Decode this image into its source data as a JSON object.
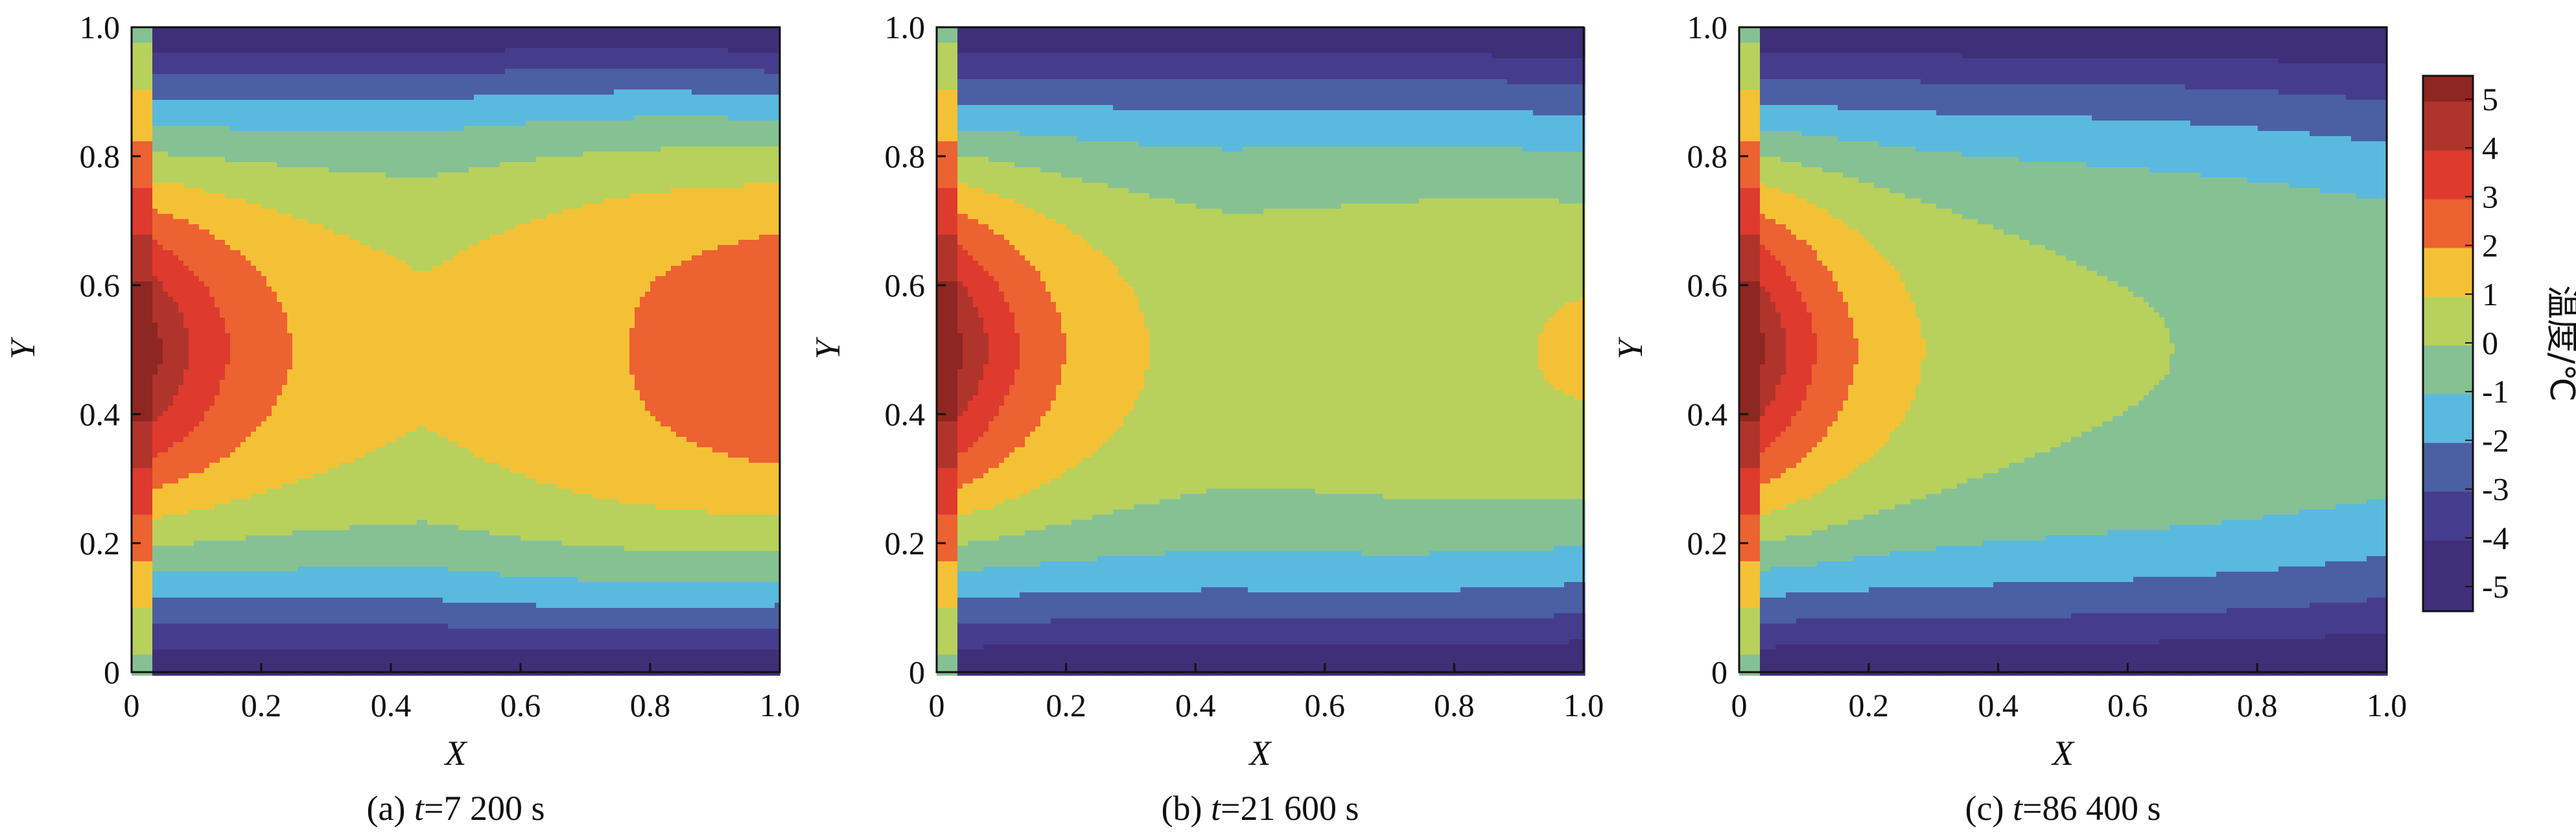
{
  "chart_data": [
    {
      "type": "heatmap",
      "panel": "a",
      "caption": {
        "prefix": "(a) ",
        "var": "t",
        "rest": "=7 200 s"
      },
      "xlabel": "X",
      "ylabel": "Y",
      "xlim": [
        0,
        1.0
      ],
      "ylim": [
        0,
        1.0
      ],
      "xticks": [
        "0",
        "0.2",
        "0.4",
        "0.6",
        "0.8",
        "1.0"
      ],
      "yticks": [
        "0",
        "0.2",
        "0.4",
        "0.6",
        "0.8",
        "1.0"
      ],
      "field_params": {
        "t_seconds": 7200,
        "left_temp": 6.0,
        "right_center_temp": 2.3,
        "mid_temp": 0.3
      }
    },
    {
      "type": "heatmap",
      "panel": "b",
      "caption": {
        "prefix": "(b) ",
        "var": "t",
        "rest": "=21 600 s"
      },
      "xlabel": "X",
      "ylabel": "Y",
      "xlim": [
        0,
        1.0
      ],
      "ylim": [
        0,
        1.0
      ],
      "xticks": [
        "0",
        "0.2",
        "0.4",
        "0.6",
        "0.8",
        "1.0"
      ],
      "yticks": [
        "0",
        "0.2",
        "0.4",
        "0.6",
        "0.8",
        "1.0"
      ],
      "field_params": {
        "t_seconds": 21600,
        "left_temp": 6.0,
        "right_center_temp": 0.6,
        "mid_temp": -0.3
      }
    },
    {
      "type": "heatmap",
      "panel": "c",
      "caption": {
        "prefix": "(c) ",
        "var": "t",
        "rest": "=86 400 s"
      },
      "xlabel": "X",
      "ylabel": "Y",
      "xlim": [
        0,
        1.0
      ],
      "ylim": [
        0,
        1.0
      ],
      "xticks": [
        "0",
        "0.2",
        "0.4",
        "0.6",
        "0.8",
        "1.0"
      ],
      "yticks": [
        "0",
        "0.2",
        "0.4",
        "0.6",
        "0.8",
        "1.0"
      ],
      "field_params": {
        "t_seconds": 86400,
        "left_temp": 6.0,
        "right_center_temp": -0.6,
        "mid_temp": -0.6
      }
    }
  ],
  "colorbar": {
    "title": "温度/℃",
    "levels": [
      "5",
      "4",
      "3",
      "2",
      "1",
      "0",
      "-1",
      "-2",
      "-3",
      "-4",
      "-5"
    ],
    "colors": [
      "#8e2621",
      "#b0342b",
      "#de3a2e",
      "#ec6231",
      "#f4c136",
      "#b7d15c",
      "#86c193",
      "#5ab9df",
      "#4b5fa4",
      "#463c8e",
      "#3f2f78"
    ]
  }
}
